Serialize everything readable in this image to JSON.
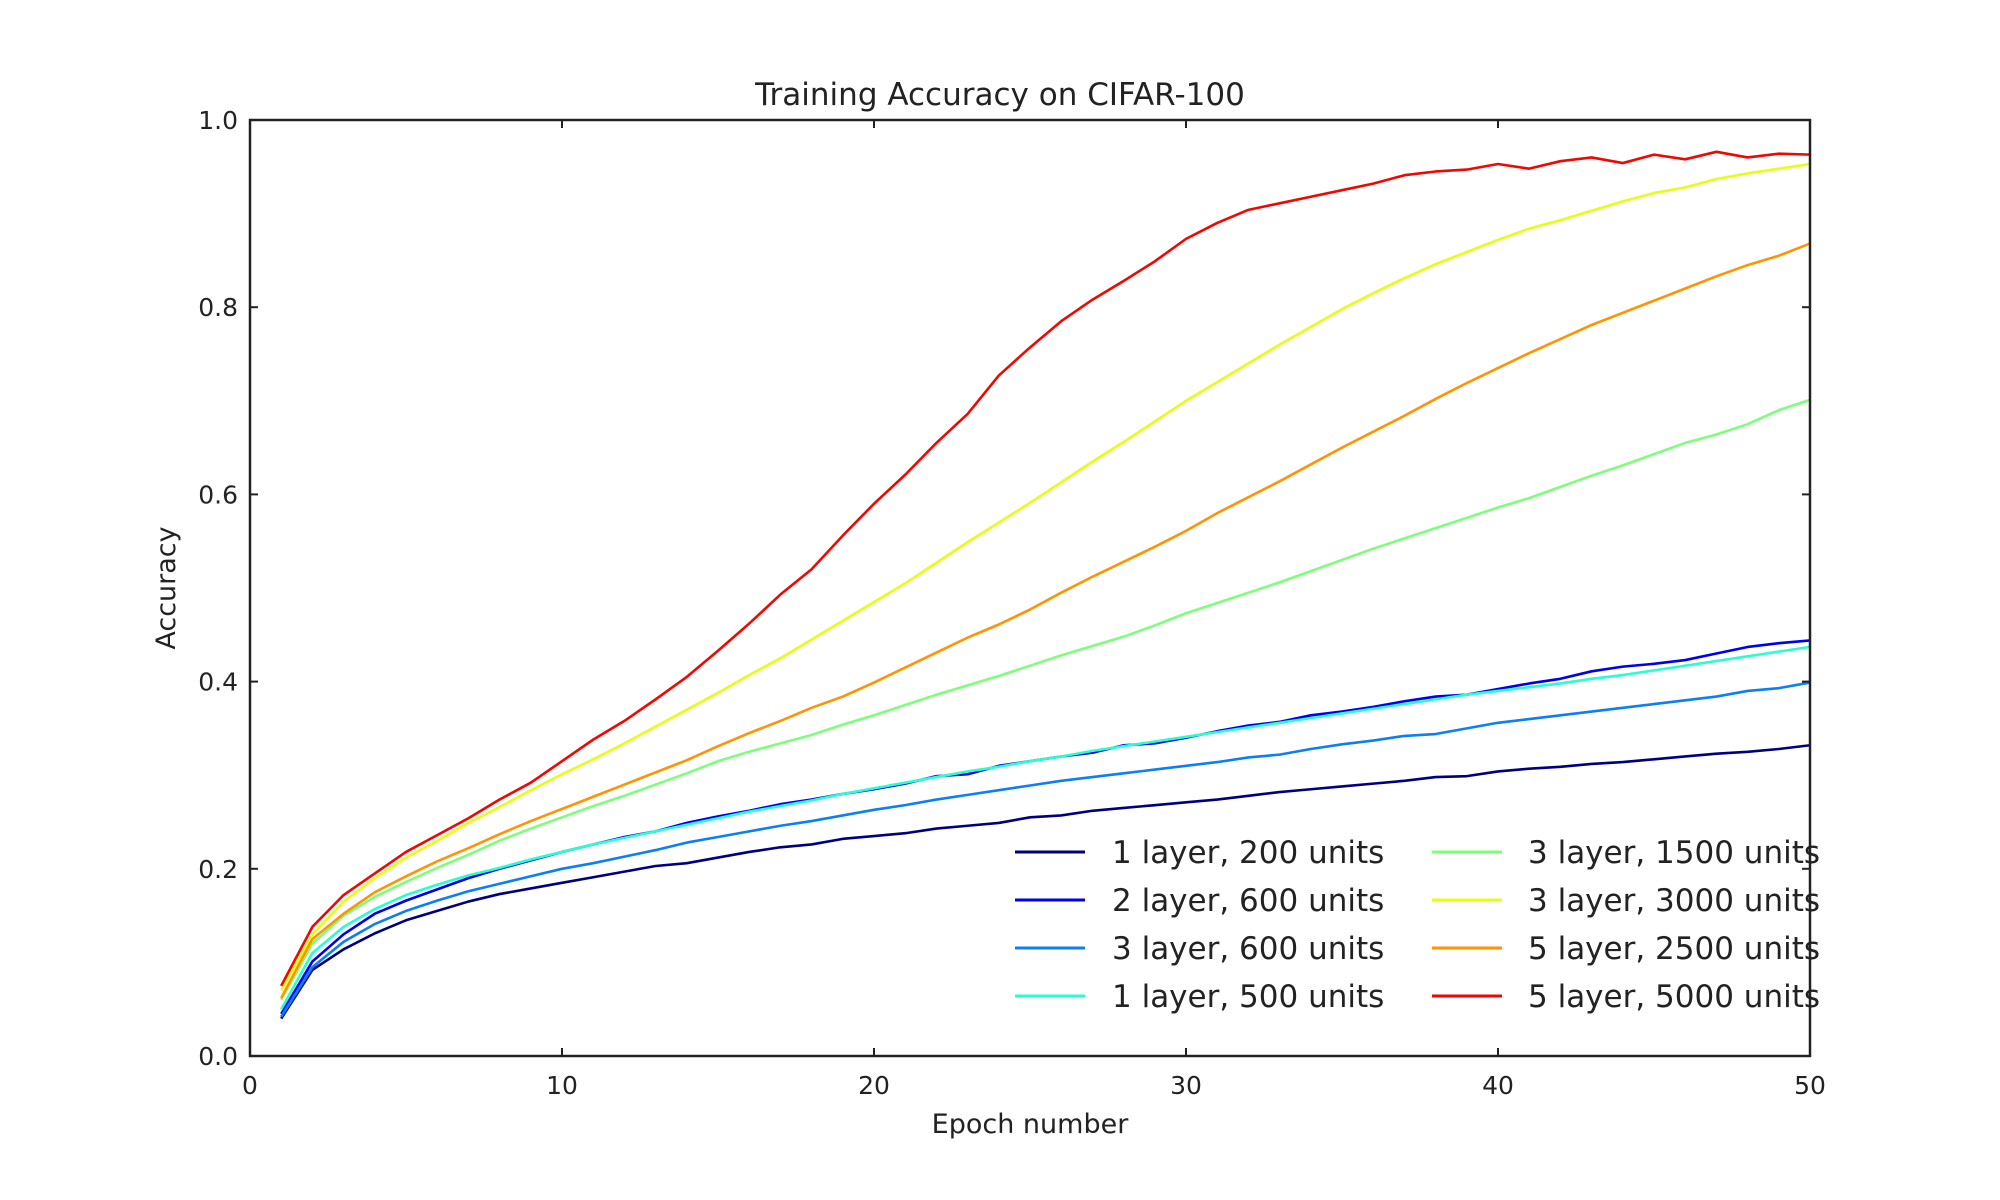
{
  "chart_data": {
    "type": "line",
    "title": "Training Accuracy on CIFAR-100",
    "xlabel": "Epoch number",
    "ylabel": "Accuracy",
    "xlim": [
      0,
      50
    ],
    "ylim": [
      0,
      1.0
    ],
    "xticks": [
      0,
      10,
      20,
      30,
      40,
      50
    ],
    "xtick_labels": [
      "0",
      "10",
      "20",
      "30",
      "40",
      "50"
    ],
    "yticks": [
      0.0,
      0.2,
      0.4,
      0.6,
      0.8,
      1.0
    ],
    "ytick_labels": [
      "0.0",
      "0.2",
      "0.4",
      "0.6",
      "0.8",
      "1.0"
    ],
    "grid": false,
    "legend_position": "lower-right",
    "legend_columns": 2,
    "x": [
      1,
      2,
      3,
      4,
      5,
      6,
      7,
      8,
      9,
      10,
      11,
      12,
      13,
      14,
      15,
      16,
      17,
      18,
      19,
      20,
      21,
      22,
      23,
      24,
      25,
      26,
      27,
      28,
      29,
      30,
      31,
      32,
      33,
      34,
      35,
      36,
      37,
      38,
      39,
      40,
      41,
      42,
      43,
      44,
      45,
      46,
      47,
      48,
      49,
      50
    ],
    "series": [
      {
        "name": "1 layer, 200 units",
        "color": "#00007f",
        "values": [
          0.04,
          0.092,
          0.114,
          0.131,
          0.145,
          0.155,
          0.165,
          0.173,
          0.179,
          0.185,
          0.191,
          0.197,
          0.203,
          0.206,
          0.212,
          0.218,
          0.223,
          0.226,
          0.232,
          0.235,
          0.238,
          0.243,
          0.246,
          0.249,
          0.255,
          0.257,
          0.262,
          0.265,
          0.268,
          0.271,
          0.274,
          0.278,
          0.282,
          0.285,
          0.288,
          0.291,
          0.294,
          0.298,
          0.299,
          0.304,
          0.307,
          0.309,
          0.312,
          0.314,
          0.317,
          0.32,
          0.323,
          0.325,
          0.328,
          0.332
        ]
      },
      {
        "name": "2 layer, 600 units",
        "color": "#0000f1",
        "values": [
          0.045,
          0.101,
          0.13,
          0.152,
          0.166,
          0.178,
          0.19,
          0.2,
          0.209,
          0.218,
          0.226,
          0.234,
          0.24,
          0.249,
          0.256,
          0.262,
          0.269,
          0.274,
          0.28,
          0.285,
          0.291,
          0.299,
          0.301,
          0.31,
          0.315,
          0.32,
          0.324,
          0.332,
          0.334,
          0.34,
          0.347,
          0.353,
          0.357,
          0.364,
          0.368,
          0.373,
          0.379,
          0.384,
          0.386,
          0.392,
          0.398,
          0.403,
          0.411,
          0.416,
          0.419,
          0.423,
          0.43,
          0.437,
          0.441,
          0.444
        ]
      },
      {
        "name": "3 layer, 600 units",
        "color": "#0c7ff5",
        "values": [
          0.042,
          0.095,
          0.122,
          0.141,
          0.155,
          0.166,
          0.176,
          0.184,
          0.192,
          0.2,
          0.206,
          0.213,
          0.22,
          0.228,
          0.234,
          0.24,
          0.246,
          0.251,
          0.257,
          0.263,
          0.268,
          0.274,
          0.279,
          0.284,
          0.289,
          0.294,
          0.298,
          0.302,
          0.306,
          0.31,
          0.314,
          0.319,
          0.322,
          0.328,
          0.333,
          0.337,
          0.342,
          0.344,
          0.35,
          0.356,
          0.36,
          0.364,
          0.368,
          0.372,
          0.376,
          0.38,
          0.384,
          0.39,
          0.393,
          0.399
        ]
      },
      {
        "name": "1 layer, 500 units",
        "color": "#29ffce",
        "values": [
          0.05,
          0.11,
          0.138,
          0.157,
          0.172,
          0.183,
          0.193,
          0.201,
          0.21,
          0.218,
          0.226,
          0.233,
          0.24,
          0.247,
          0.254,
          0.261,
          0.267,
          0.273,
          0.28,
          0.286,
          0.292,
          0.298,
          0.304,
          0.309,
          0.315,
          0.32,
          0.326,
          0.331,
          0.336,
          0.341,
          0.346,
          0.351,
          0.356,
          0.361,
          0.366,
          0.371,
          0.376,
          0.381,
          0.386,
          0.39,
          0.394,
          0.398,
          0.403,
          0.407,
          0.412,
          0.417,
          0.422,
          0.427,
          0.432,
          0.437
        ]
      },
      {
        "name": "3 layer, 1500 units",
        "color": "#7dff7a",
        "values": [
          0.06,
          0.12,
          0.15,
          0.17,
          0.186,
          0.201,
          0.215,
          0.23,
          0.243,
          0.255,
          0.267,
          0.278,
          0.29,
          0.302,
          0.315,
          0.325,
          0.334,
          0.343,
          0.354,
          0.364,
          0.375,
          0.386,
          0.396,
          0.406,
          0.417,
          0.428,
          0.438,
          0.448,
          0.46,
          0.473,
          0.484,
          0.495,
          0.506,
          0.518,
          0.53,
          0.542,
          0.553,
          0.564,
          0.575,
          0.586,
          0.596,
          0.608,
          0.62,
          0.631,
          0.643,
          0.655,
          0.664,
          0.675,
          0.69,
          0.701
        ]
      },
      {
        "name": "3 layer, 3000 units",
        "color": "#e4ff12",
        "values": [
          0.07,
          0.13,
          0.165,
          0.19,
          0.212,
          0.23,
          0.249,
          0.266,
          0.284,
          0.301,
          0.317,
          0.334,
          0.352,
          0.37,
          0.388,
          0.407,
          0.425,
          0.445,
          0.465,
          0.485,
          0.505,
          0.527,
          0.549,
          0.57,
          0.591,
          0.613,
          0.635,
          0.656,
          0.678,
          0.7,
          0.72,
          0.74,
          0.76,
          0.779,
          0.798,
          0.815,
          0.831,
          0.846,
          0.859,
          0.872,
          0.884,
          0.893,
          0.903,
          0.913,
          0.922,
          0.928,
          0.937,
          0.943,
          0.948,
          0.953
        ]
      },
      {
        "name": "5 layer, 2500 units",
        "color": "#ff9400",
        "values": [
          0.062,
          0.125,
          0.152,
          0.175,
          0.192,
          0.208,
          0.222,
          0.237,
          0.251,
          0.264,
          0.277,
          0.29,
          0.303,
          0.316,
          0.331,
          0.345,
          0.358,
          0.372,
          0.384,
          0.399,
          0.415,
          0.431,
          0.447,
          0.461,
          0.477,
          0.495,
          0.512,
          0.528,
          0.544,
          0.561,
          0.58,
          0.597,
          0.614,
          0.632,
          0.65,
          0.667,
          0.684,
          0.702,
          0.719,
          0.735,
          0.751,
          0.766,
          0.781,
          0.794,
          0.807,
          0.82,
          0.833,
          0.845,
          0.855,
          0.868
        ]
      },
      {
        "name": "5 layer, 5000 units",
        "color": "#f10700",
        "values": [
          0.075,
          0.138,
          0.172,
          0.195,
          0.218,
          0.236,
          0.254,
          0.274,
          0.292,
          0.315,
          0.338,
          0.358,
          0.381,
          0.405,
          0.433,
          0.462,
          0.493,
          0.52,
          0.556,
          0.59,
          0.621,
          0.655,
          0.686,
          0.727,
          0.757,
          0.785,
          0.808,
          0.828,
          0.849,
          0.873,
          0.89,
          0.904,
          0.911,
          0.918,
          0.925,
          0.932,
          0.941,
          0.945,
          0.947,
          0.953,
          0.948,
          0.956,
          0.96,
          0.954,
          0.963,
          0.958,
          0.966,
          0.96,
          0.964,
          0.963
        ]
      }
    ]
  }
}
